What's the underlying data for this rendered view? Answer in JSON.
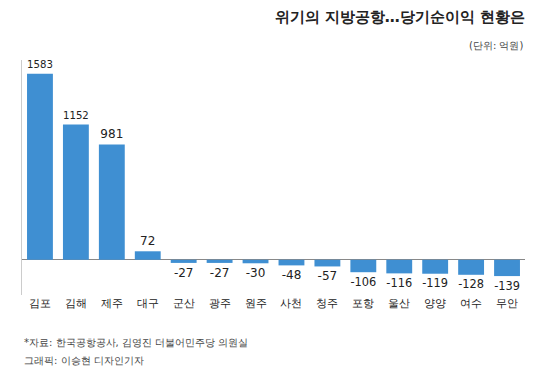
{
  "chart_data": {
    "type": "bar",
    "title": "위기의 지방공항…당기순이익 현황은",
    "subtitle": "(단위: 억원)",
    "annotations": [
      "*자료: 한국공항공사, 김영진 더불어민주당 의원실",
      "그래픽: 이승현 디자인기자"
    ],
    "categories": [
      "김포",
      "김해",
      "제주",
      "대구",
      "군산",
      "광주",
      "원주",
      "사천",
      "청주",
      "포항",
      "울산",
      "양양",
      "여수",
      "무안"
    ],
    "values": [
      1583,
      1152,
      981,
      72,
      -27,
      -27,
      -30,
      -48,
      -57,
      -106,
      -116,
      -119,
      -128,
      -139
    ],
    "color": "#3f8fd2",
    "ylim": [
      -300,
      1700
    ],
    "grid": false,
    "data_labels": true,
    "tick_labels": "x"
  }
}
